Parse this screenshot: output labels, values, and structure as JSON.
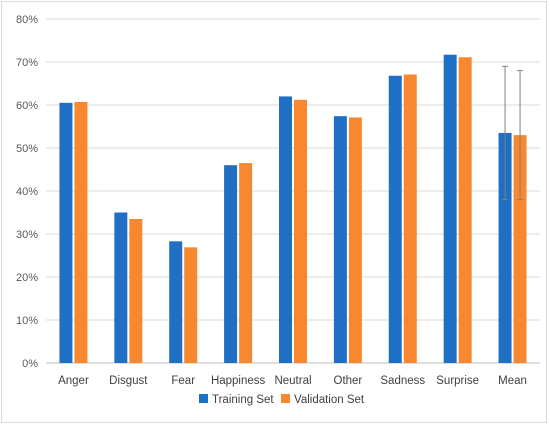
{
  "chart_data": {
    "type": "bar",
    "title": "",
    "xlabel": "",
    "ylabel": "",
    "categories": [
      "Anger",
      "Disgust",
      "Fear",
      "Happiness",
      "Neutral",
      "Other",
      "Sadness",
      "Surprise",
      "Mean"
    ],
    "series": [
      {
        "name": "Training Set",
        "color": "#1f6fc5",
        "values": [
          60.5,
          35.0,
          28.3,
          46.0,
          62.0,
          57.4,
          66.8,
          71.7,
          53.5
        ],
        "error": [
          null,
          null,
          null,
          null,
          null,
          null,
          null,
          null,
          15.5
        ]
      },
      {
        "name": "Validation Set",
        "color": "#f7882f",
        "values": [
          60.7,
          33.5,
          26.9,
          46.5,
          61.2,
          57.1,
          67.1,
          71.1,
          53.0
        ],
        "error": [
          null,
          null,
          null,
          null,
          null,
          null,
          null,
          null,
          15.0
        ]
      }
    ],
    "ylim": [
      0,
      80
    ],
    "yticks": [
      "0%",
      "10%",
      "20%",
      "30%",
      "40%",
      "50%",
      "60%",
      "70%",
      "80%"
    ],
    "grid": true,
    "legend_position": "bottom-center"
  }
}
